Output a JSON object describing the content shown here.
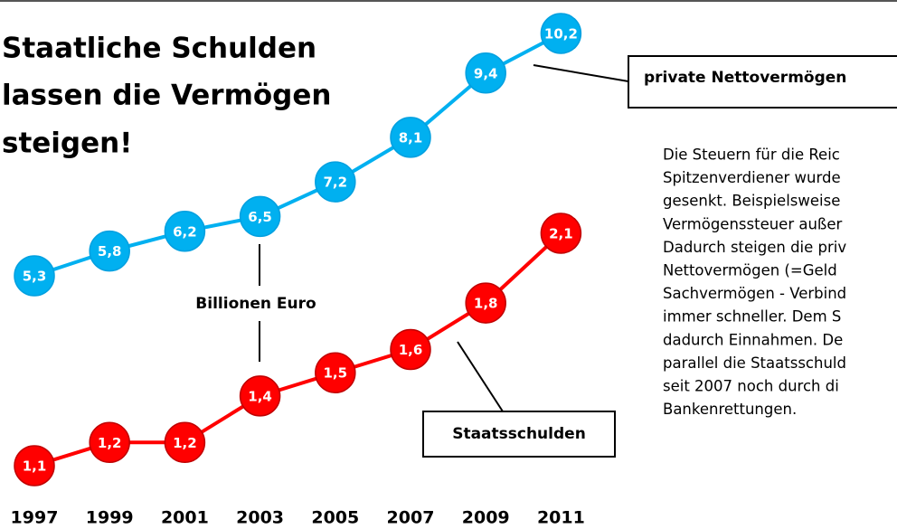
{
  "chart_data": {
    "type": "line",
    "title": [
      "Staatliche Schulden",
      "lassen die Vermögen",
      "steigen!"
    ],
    "categories": [
      "1997",
      "1999",
      "2001",
      "2003",
      "2005",
      "2007",
      "2009",
      "2011"
    ],
    "series": [
      {
        "name": "private Nettovermögen",
        "color": "#00b0f0",
        "values": [
          5.3,
          5.8,
          6.2,
          6.5,
          7.2,
          8.1,
          9.4,
          10.2
        ],
        "value_labels": [
          "5,3",
          "5,8",
          "6,2",
          "6,5",
          "7,2",
          "8,1",
          "9,4",
          "10,2"
        ]
      },
      {
        "name": "Staatsschulden",
        "color": "#ff0000",
        "values": [
          1.1,
          1.2,
          1.2,
          1.4,
          1.5,
          1.6,
          1.8,
          2.1
        ],
        "value_labels": [
          "1,1",
          "1,2",
          "1,2",
          "1,4",
          "1,5",
          "1,6",
          "1,8",
          "2,1"
        ]
      }
    ],
    "unit_annotation": "Billionen Euro",
    "text_lines": [
      "Die Steuern für die Reic",
      "Spitzenverdiener wurde",
      "gesenkt. Beispielsweise",
      "Vermögenssteuer außer",
      "Dadurch steigen die priv",
      "Nettovermögen  (=Geld",
      "Sachvermögen - Verbind",
      "immer schneller.  Dem S",
      "dadurch Einnahmen.  De",
      "parallel die Staatsschuld",
      "seit 2007 noch durch di",
      "Bankenrettungen."
    ]
  }
}
